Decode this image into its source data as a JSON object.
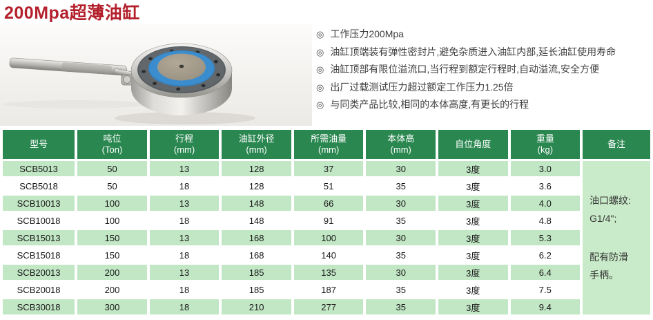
{
  "page": {
    "title": "200Mpa超薄油缸"
  },
  "features": {
    "bullet_icon": "◎",
    "items": [
      "工作压力200Mpa",
      "油缸顶端装有弹性密封片,避免杂质进入油缸内部,延长油缸使用寿命",
      "油缸顶部有限位溢流口,当行程到额定行程时,自动溢流,安全方便",
      "出厂过载测试压力超过额定工作压力1.25倍",
      "与同类产品比较,相同的本体高度,有更长的行程"
    ]
  },
  "product_photo": {
    "subject": "超薄油缸 (ultra-thin hydraulic cylinder with handle)",
    "seal_blue": "#3484c6",
    "flange_dark": "#585d60",
    "steel_light": "#f0efec"
  },
  "colors": {
    "title_red": "#b3202c",
    "header_green": "#2a8750",
    "row_green": "#c2e7c5",
    "remark_green": "#c9ebc9"
  },
  "table": {
    "headers": [
      {
        "label": "型号",
        "unit": ""
      },
      {
        "label": "吨位",
        "unit": "(Ton)"
      },
      {
        "label": "行程",
        "unit": "(mm)"
      },
      {
        "label": "油缸外径",
        "unit": "(mm)"
      },
      {
        "label": "所需油量",
        "unit": "(mm)"
      },
      {
        "label": "本体高",
        "unit": "(mm)"
      },
      {
        "label": "自位角度",
        "unit": ""
      },
      {
        "label": "重量",
        "unit": "(kg)"
      },
      {
        "label": "备注",
        "unit": ""
      }
    ],
    "col_widths": [
      "11.5%",
      "11.1%",
      "11.1%",
      "11.1%",
      "11.1%",
      "11.1%",
      "11.1%",
      "11.1%",
      "10.8%"
    ],
    "rows": [
      [
        "SCB5013",
        "50",
        "13",
        "128",
        "37",
        "30",
        "3度",
        "3.0"
      ],
      [
        "SCB5018",
        "50",
        "18",
        "128",
        "51",
        "35",
        "3度",
        "3.6"
      ],
      [
        "SCB10013",
        "100",
        "13",
        "148",
        "66",
        "30",
        "3度",
        "4.0"
      ],
      [
        "SCB10018",
        "100",
        "18",
        "148",
        "91",
        "35",
        "3度",
        "4.8"
      ],
      [
        "SCB15013",
        "150",
        "13",
        "168",
        "100",
        "30",
        "3度",
        "5.3"
      ],
      [
        "SCB15018",
        "150",
        "18",
        "168",
        "140",
        "35",
        "3度",
        "6.2"
      ],
      [
        "SCB20013",
        "200",
        "13",
        "185",
        "135",
        "30",
        "3度",
        "6.4"
      ],
      [
        "SCB20018",
        "200",
        "18",
        "185",
        "187",
        "35",
        "3度",
        "7.5"
      ],
      [
        "SCB30018",
        "300",
        "18",
        "210",
        "277",
        "35",
        "3度",
        "9.4"
      ]
    ],
    "remark_lines": [
      "油口螺纹:",
      "G1/4\";",
      "",
      "配有防滑",
      "手柄。"
    ]
  }
}
